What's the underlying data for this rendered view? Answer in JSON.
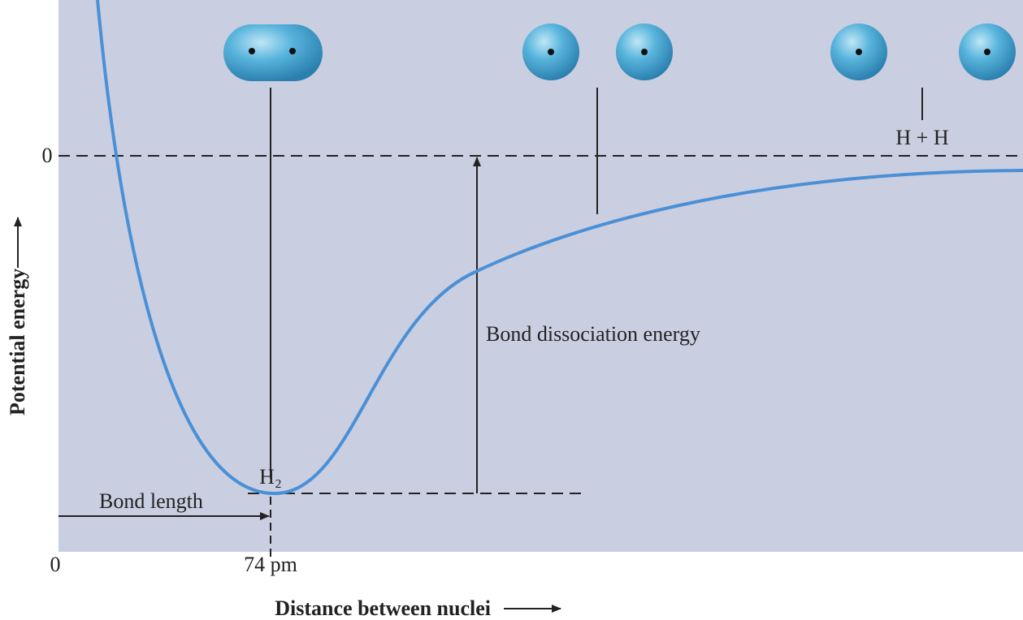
{
  "axes": {
    "y_label": "Potential energy",
    "x_label": "Distance between nuclei",
    "y_zero": "0",
    "x_zero": "0",
    "x_mark": "74 pm"
  },
  "annotations": {
    "separated": "H + H",
    "molecule": "H₂",
    "bond_length": "Bond length",
    "bond_energy": "Bond dissociation energy"
  }
}
